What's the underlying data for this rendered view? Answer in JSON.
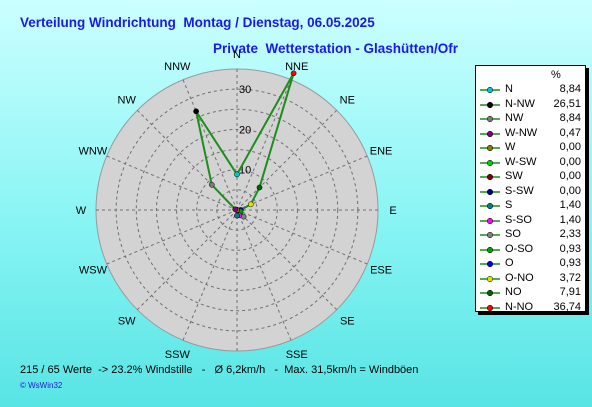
{
  "title": "Verteilung Windrichtung  Montag / Dienstag, 06.05.2025",
  "subtitle": "Private  Wetterstation - Glashütten/Ofr",
  "legend_header": "%",
  "footer": "215 / 65 Werte  -> 23.2% Windstille   -   Ø 6,2km/h   -  Max. 31,5km/h = Windböen",
  "brand": "© WsWin32",
  "chart_data": {
    "type": "radar",
    "title": "Verteilung Windrichtung  Montag / Dienstag, 06.05.2025",
    "directions": [
      "N",
      "NNE",
      "NE",
      "ENE",
      "E",
      "ESE",
      "SE",
      "SSE",
      "S",
      "SSW",
      "SW",
      "WSW",
      "W",
      "WNW",
      "NW",
      "NNW"
    ],
    "radial_ticks": [
      10,
      20,
      30
    ],
    "rmax": 35,
    "line_color": "#1e8c1e",
    "series": [
      {
        "name": "N",
        "value": 8.84,
        "angle_index": 0,
        "color": "#00c8c8"
      },
      {
        "name": "N-NW",
        "value": 26.51,
        "angle_index": 15,
        "color": "#000000"
      },
      {
        "name": "NW",
        "value": 8.84,
        "angle_index": 14,
        "color": "#7a7a7a"
      },
      {
        "name": "W-NW",
        "value": 0.47,
        "angle_index": 13,
        "color": "#800080"
      },
      {
        "name": "W",
        "value": 0.0,
        "angle_index": 12,
        "color": "#808000"
      },
      {
        "name": "W-SW",
        "value": 0.0,
        "angle_index": 11,
        "color": "#00cc00"
      },
      {
        "name": "SW",
        "value": 0.0,
        "angle_index": 10,
        "color": "#800000"
      },
      {
        "name": "S-SW",
        "value": 0.0,
        "angle_index": 9,
        "color": "#000080"
      },
      {
        "name": "S",
        "value": 1.4,
        "angle_index": 8,
        "color": "#008080"
      },
      {
        "name": "S-SO",
        "value": 1.4,
        "angle_index": 7,
        "color": "#ff00ff"
      },
      {
        "name": "SO",
        "value": 2.33,
        "angle_index": 6,
        "color": "#808080"
      },
      {
        "name": "O-SO",
        "value": 0.93,
        "angle_index": 5,
        "color": "#00a000"
      },
      {
        "name": "O",
        "value": 0.93,
        "angle_index": 4,
        "color": "#0000ff"
      },
      {
        "name": "O-NO",
        "value": 3.72,
        "angle_index": 3,
        "color": "#e0e000"
      },
      {
        "name": "NO",
        "value": 7.91,
        "angle_index": 2,
        "color": "#006400"
      },
      {
        "name": "N-NO",
        "value": 36.74,
        "angle_index": 1,
        "color": "#ff0000"
      }
    ]
  }
}
